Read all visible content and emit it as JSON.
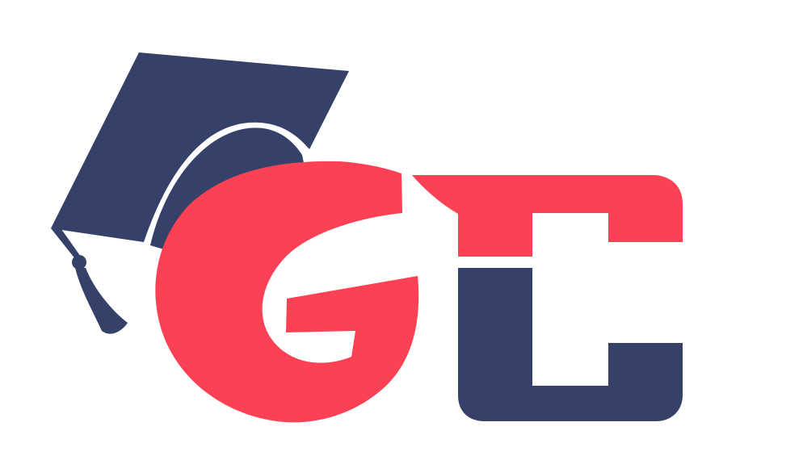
{
  "logo": {
    "lettering": "GC",
    "icon": "graduation-cap-icon",
    "colors": {
      "background": "#ffffff",
      "navy": "#354168",
      "red": "#fc4154"
    }
  }
}
